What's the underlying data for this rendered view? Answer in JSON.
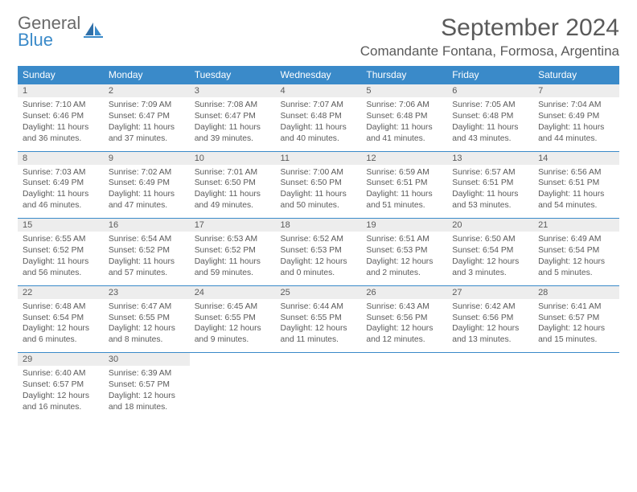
{
  "logo": {
    "general": "General",
    "blue": "Blue"
  },
  "title": "September 2024",
  "location": "Comandante Fontana, Formosa, Argentina",
  "colors": {
    "header_bg": "#3a8ac9",
    "header_text": "#ffffff",
    "daynum_bg": "#ededed",
    "text": "#5a5a5a",
    "rule": "#3a8ac9",
    "page_bg": "#ffffff"
  },
  "day_headers": [
    "Sunday",
    "Monday",
    "Tuesday",
    "Wednesday",
    "Thursday",
    "Friday",
    "Saturday"
  ],
  "days": [
    {
      "n": "1",
      "sr": "7:10 AM",
      "ss": "6:46 PM",
      "dl": "11 hours and 36 minutes."
    },
    {
      "n": "2",
      "sr": "7:09 AM",
      "ss": "6:47 PM",
      "dl": "11 hours and 37 minutes."
    },
    {
      "n": "3",
      "sr": "7:08 AM",
      "ss": "6:47 PM",
      "dl": "11 hours and 39 minutes."
    },
    {
      "n": "4",
      "sr": "7:07 AM",
      "ss": "6:48 PM",
      "dl": "11 hours and 40 minutes."
    },
    {
      "n": "5",
      "sr": "7:06 AM",
      "ss": "6:48 PM",
      "dl": "11 hours and 41 minutes."
    },
    {
      "n": "6",
      "sr": "7:05 AM",
      "ss": "6:48 PM",
      "dl": "11 hours and 43 minutes."
    },
    {
      "n": "7",
      "sr": "7:04 AM",
      "ss": "6:49 PM",
      "dl": "11 hours and 44 minutes."
    },
    {
      "n": "8",
      "sr": "7:03 AM",
      "ss": "6:49 PM",
      "dl": "11 hours and 46 minutes."
    },
    {
      "n": "9",
      "sr": "7:02 AM",
      "ss": "6:49 PM",
      "dl": "11 hours and 47 minutes."
    },
    {
      "n": "10",
      "sr": "7:01 AM",
      "ss": "6:50 PM",
      "dl": "11 hours and 49 minutes."
    },
    {
      "n": "11",
      "sr": "7:00 AM",
      "ss": "6:50 PM",
      "dl": "11 hours and 50 minutes."
    },
    {
      "n": "12",
      "sr": "6:59 AM",
      "ss": "6:51 PM",
      "dl": "11 hours and 51 minutes."
    },
    {
      "n": "13",
      "sr": "6:57 AM",
      "ss": "6:51 PM",
      "dl": "11 hours and 53 minutes."
    },
    {
      "n": "14",
      "sr": "6:56 AM",
      "ss": "6:51 PM",
      "dl": "11 hours and 54 minutes."
    },
    {
      "n": "15",
      "sr": "6:55 AM",
      "ss": "6:52 PM",
      "dl": "11 hours and 56 minutes."
    },
    {
      "n": "16",
      "sr": "6:54 AM",
      "ss": "6:52 PM",
      "dl": "11 hours and 57 minutes."
    },
    {
      "n": "17",
      "sr": "6:53 AM",
      "ss": "6:52 PM",
      "dl": "11 hours and 59 minutes."
    },
    {
      "n": "18",
      "sr": "6:52 AM",
      "ss": "6:53 PM",
      "dl": "12 hours and 0 minutes."
    },
    {
      "n": "19",
      "sr": "6:51 AM",
      "ss": "6:53 PM",
      "dl": "12 hours and 2 minutes."
    },
    {
      "n": "20",
      "sr": "6:50 AM",
      "ss": "6:54 PM",
      "dl": "12 hours and 3 minutes."
    },
    {
      "n": "21",
      "sr": "6:49 AM",
      "ss": "6:54 PM",
      "dl": "12 hours and 5 minutes."
    },
    {
      "n": "22",
      "sr": "6:48 AM",
      "ss": "6:54 PM",
      "dl": "12 hours and 6 minutes."
    },
    {
      "n": "23",
      "sr": "6:47 AM",
      "ss": "6:55 PM",
      "dl": "12 hours and 8 minutes."
    },
    {
      "n": "24",
      "sr": "6:45 AM",
      "ss": "6:55 PM",
      "dl": "12 hours and 9 minutes."
    },
    {
      "n": "25",
      "sr": "6:44 AM",
      "ss": "6:55 PM",
      "dl": "12 hours and 11 minutes."
    },
    {
      "n": "26",
      "sr": "6:43 AM",
      "ss": "6:56 PM",
      "dl": "12 hours and 12 minutes."
    },
    {
      "n": "27",
      "sr": "6:42 AM",
      "ss": "6:56 PM",
      "dl": "12 hours and 13 minutes."
    },
    {
      "n": "28",
      "sr": "6:41 AM",
      "ss": "6:57 PM",
      "dl": "12 hours and 15 minutes."
    },
    {
      "n": "29",
      "sr": "6:40 AM",
      "ss": "6:57 PM",
      "dl": "12 hours and 16 minutes."
    },
    {
      "n": "30",
      "sr": "6:39 AM",
      "ss": "6:57 PM",
      "dl": "12 hours and 18 minutes."
    }
  ],
  "labels": {
    "sunrise": "Sunrise:",
    "sunset": "Sunset:",
    "daylight": "Daylight:"
  }
}
